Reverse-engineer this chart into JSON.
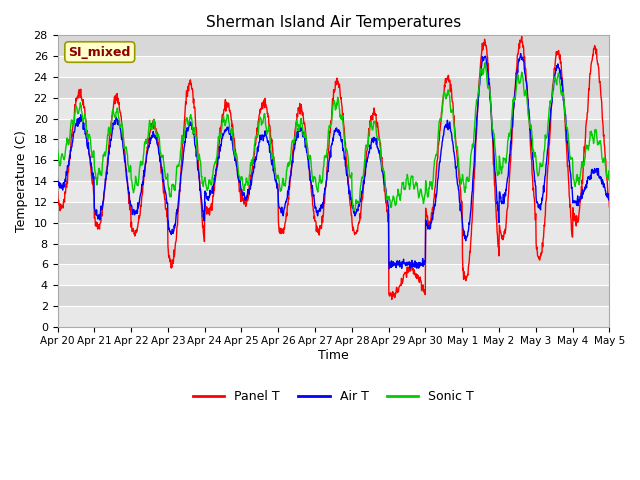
{
  "title": "Sherman Island Air Temperatures",
  "xlabel": "Time",
  "ylabel": "Temperature (C)",
  "ylim": [
    0,
    28
  ],
  "yticks": [
    0,
    2,
    4,
    6,
    8,
    10,
    12,
    14,
    16,
    18,
    20,
    22,
    24,
    26,
    28
  ],
  "plot_bg_light": "#e8e8e8",
  "plot_bg_dark": "#d8d8d8",
  "fig_color": "#ffffff",
  "annotation_text": "SI_mixed",
  "annotation_color": "#8b0000",
  "annotation_bg": "#ffffcc",
  "legend_labels": [
    "Panel T",
    "Air T",
    "Sonic T"
  ],
  "line_colors": [
    "#ff0000",
    "#0000ff",
    "#00cc00"
  ],
  "line_width": 1.0,
  "x_tick_labels": [
    "Apr 20",
    "Apr 21",
    "Apr 22",
    "Apr 23",
    "Apr 24",
    "Apr 25",
    "Apr 26",
    "Apr 27",
    "Apr 28",
    "Apr 29",
    "Apr 30",
    "May 1",
    "May 2",
    "May 3",
    "May 4",
    "May 5"
  ]
}
